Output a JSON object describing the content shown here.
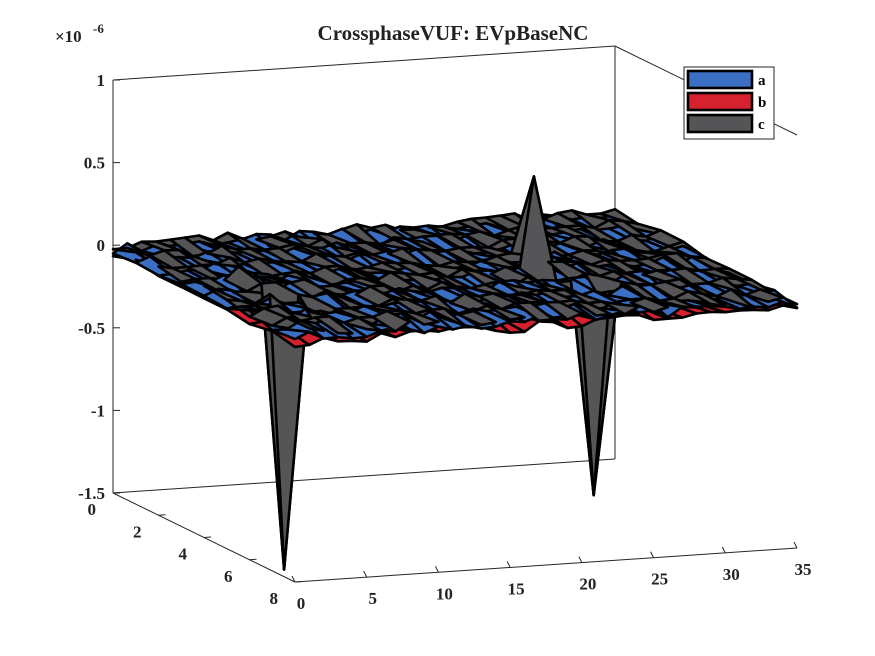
{
  "chart_data": {
    "type": "surface",
    "title": "CrossphaseVUF: EVpBaseNC",
    "exponent_label": "×10",
    "exponent_power": "-6",
    "zlim": [
      -1.5,
      1
    ],
    "z_ticks": [
      {
        "value": 1,
        "label": "1"
      },
      {
        "value": 0.5,
        "label": "0.5"
      },
      {
        "value": 0,
        "label": "0"
      },
      {
        "value": -0.5,
        "label": "-0.5"
      },
      {
        "value": -1,
        "label": "-1"
      },
      {
        "value": -1.5,
        "label": "-1.5"
      }
    ],
    "xlim": [
      0,
      35
    ],
    "x_ticks": [
      {
        "value": 0,
        "label": "0"
      },
      {
        "value": 5,
        "label": "5"
      },
      {
        "value": 10,
        "label": "10"
      },
      {
        "value": 15,
        "label": "15"
      },
      {
        "value": 20,
        "label": "20"
      },
      {
        "value": 25,
        "label": "25"
      },
      {
        "value": 30,
        "label": "30"
      },
      {
        "value": 35,
        "label": "35"
      }
    ],
    "ylim": [
      0,
      8
    ],
    "y_ticks": [
      {
        "value": 0,
        "label": "0"
      },
      {
        "value": 2,
        "label": "2"
      },
      {
        "value": 4,
        "label": "4"
      },
      {
        "value": 6,
        "label": "6"
      },
      {
        "value": 8,
        "label": "8"
      }
    ],
    "grid": false,
    "legend_position": "top-right",
    "series": [
      {
        "name": "a",
        "color": "#3a6fc4",
        "offset": -0.02,
        "description": "near-flat surface slightly below zero"
      },
      {
        "name": "b",
        "color": "#d6222f",
        "offset": -0.05,
        "description": "near-flat surface, hidden beneath a and c"
      },
      {
        "name": "c",
        "color": "#555557",
        "offset": 0.0,
        "description": "near-flat surface with spikes",
        "spikes": [
          {
            "x": 4,
            "y": 5,
            "z": -1.65
          },
          {
            "x": 23,
            "y": 4,
            "z": 0.55
          },
          {
            "x": 24,
            "y": 6,
            "z": -1.25
          },
          {
            "x": 4,
            "y": 3,
            "z": 0.05
          },
          {
            "x": 5,
            "y": 6,
            "z": -0.15
          },
          {
            "x": 25,
            "y": 6,
            "z": -0.15
          }
        ]
      }
    ]
  }
}
